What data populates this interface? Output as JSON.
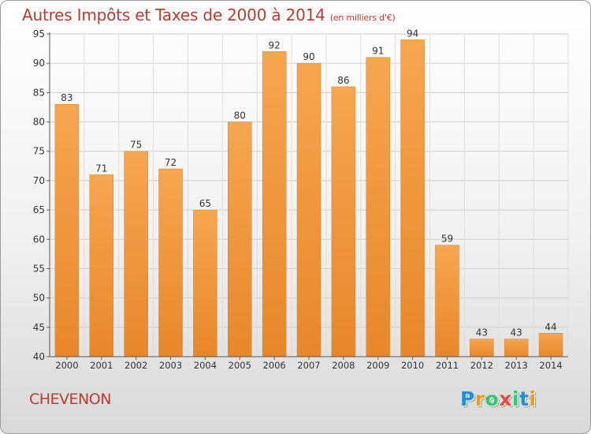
{
  "title": "Autres Impôts et Taxes de 2000 à 2014",
  "title_unit": "(en milliers d'€)",
  "commune": "CHEVENON",
  "logo": {
    "letters": [
      "P",
      "r",
      "o",
      "x",
      "i",
      "t",
      "i"
    ],
    "colors": [
      "#1f8fd6",
      "#f39c12",
      "#2ecc71",
      "#e74c3c",
      "#2ecc71",
      "#1f8fd6",
      "#f39c12"
    ]
  },
  "colors": {
    "title": "#c0392b",
    "bar": "#f5a04a",
    "bar_dark": "#e88a2c",
    "grid": "#cccccc"
  },
  "chart_data": {
    "type": "bar",
    "title": "Autres Impôts et Taxes de 2000 à 2014",
    "subtitle": "(en milliers d'€)",
    "categories": [
      "2000",
      "2001",
      "2002",
      "2003",
      "2004",
      "2005",
      "2006",
      "2007",
      "2008",
      "2009",
      "2010",
      "2011",
      "2012",
      "2013",
      "2014"
    ],
    "values": [
      83,
      71,
      75,
      72,
      65,
      80,
      92,
      90,
      86,
      91,
      94,
      59,
      43,
      43,
      44
    ],
    "ylim": [
      40,
      95
    ],
    "yticks": [
      40,
      45,
      50,
      55,
      60,
      65,
      70,
      75,
      80,
      85,
      90,
      95
    ],
    "grid": true,
    "data_labels": true
  }
}
